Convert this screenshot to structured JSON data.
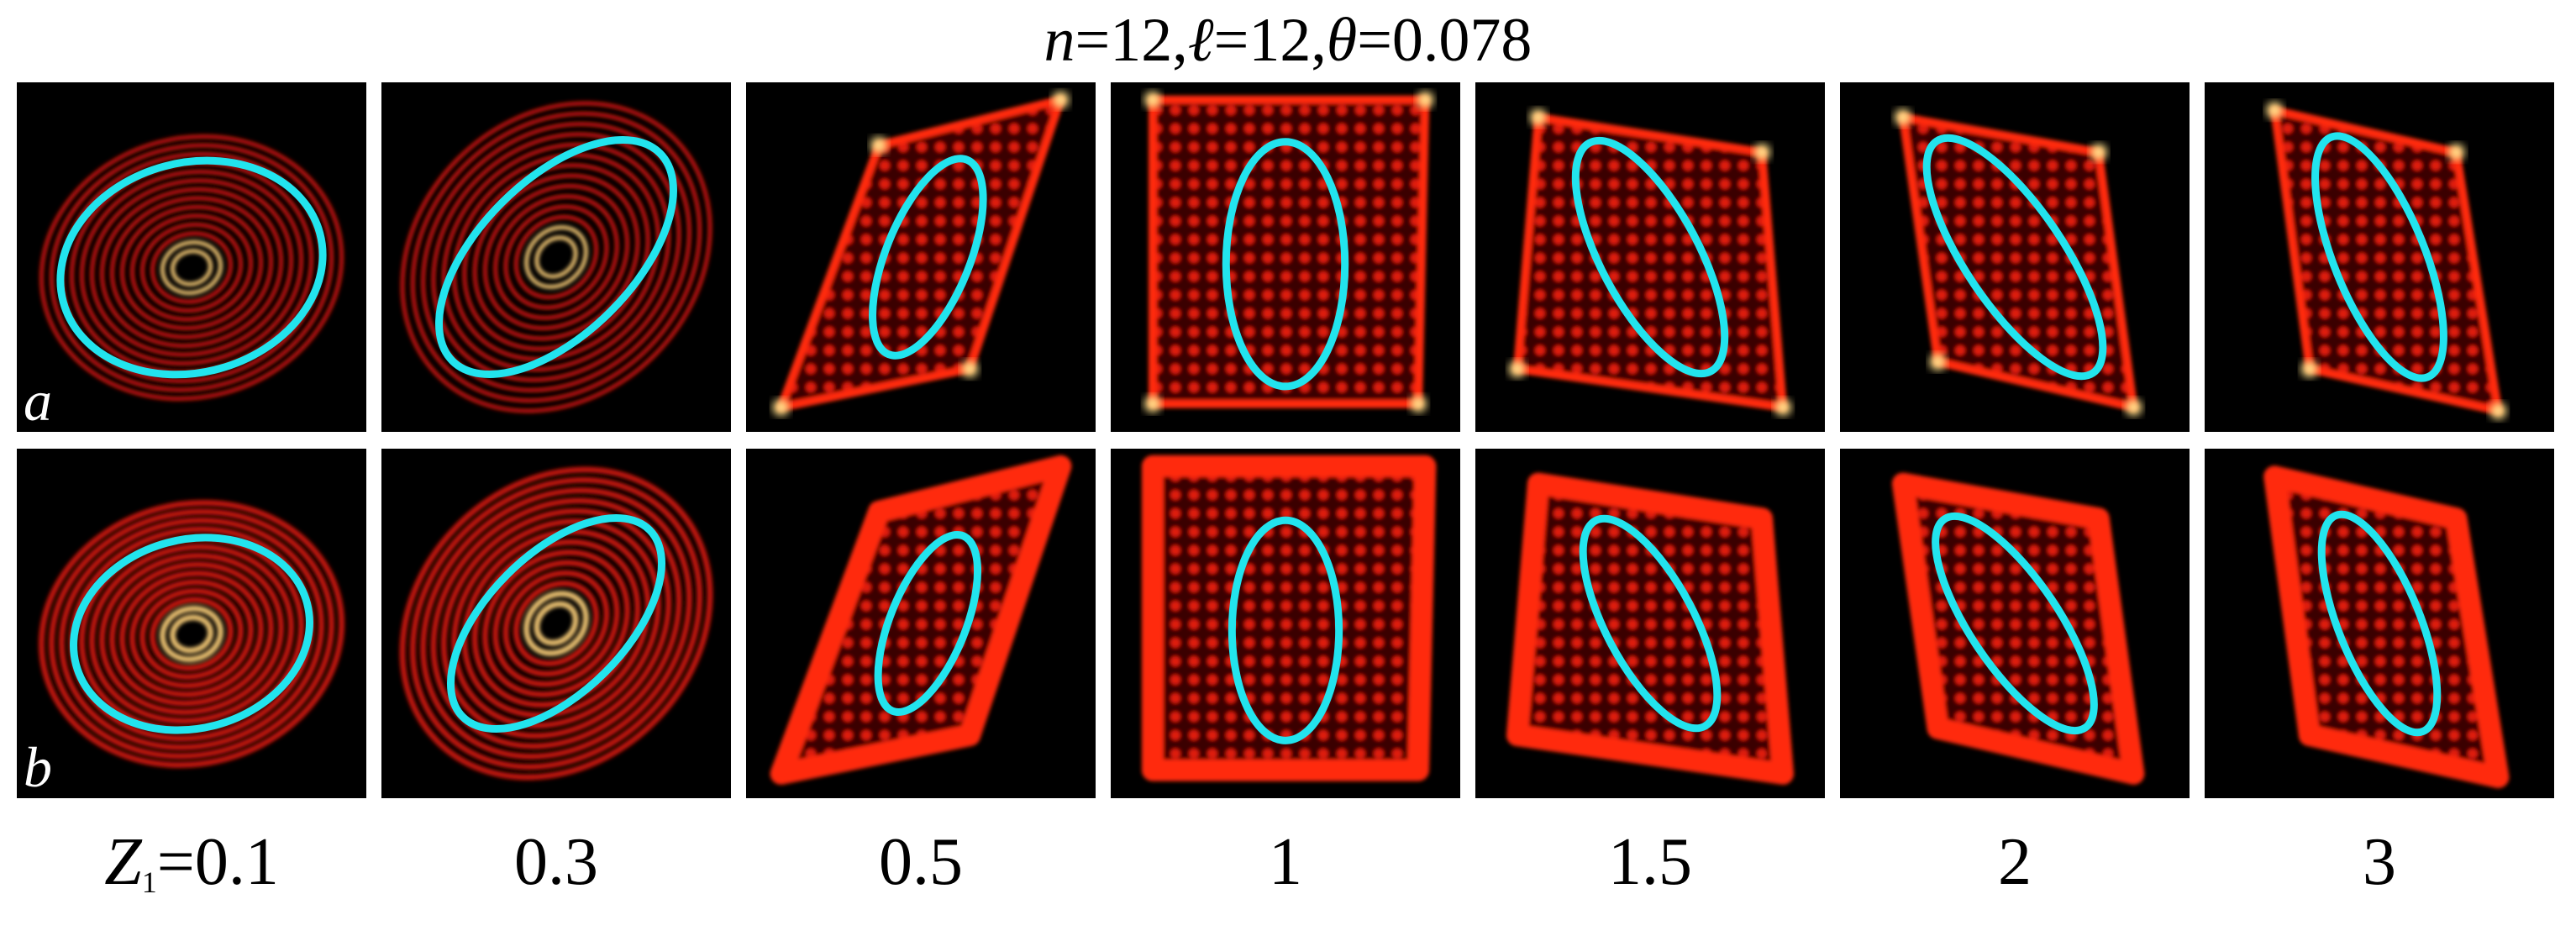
{
  "title": [
    {
      "var": "n",
      "text": "=12,"
    },
    {
      "var": "ℓ",
      "text": "=12,"
    },
    {
      "var": "θ",
      "text": "=0.078"
    }
  ],
  "rows": [
    "a",
    "b"
  ],
  "z_symbol": "Z",
  "z_subscript": "1",
  "z_equals": "=",
  "columns": [
    "0.1",
    "0.3",
    "0.5",
    "1",
    "1.5",
    "2",
    "3"
  ]
}
